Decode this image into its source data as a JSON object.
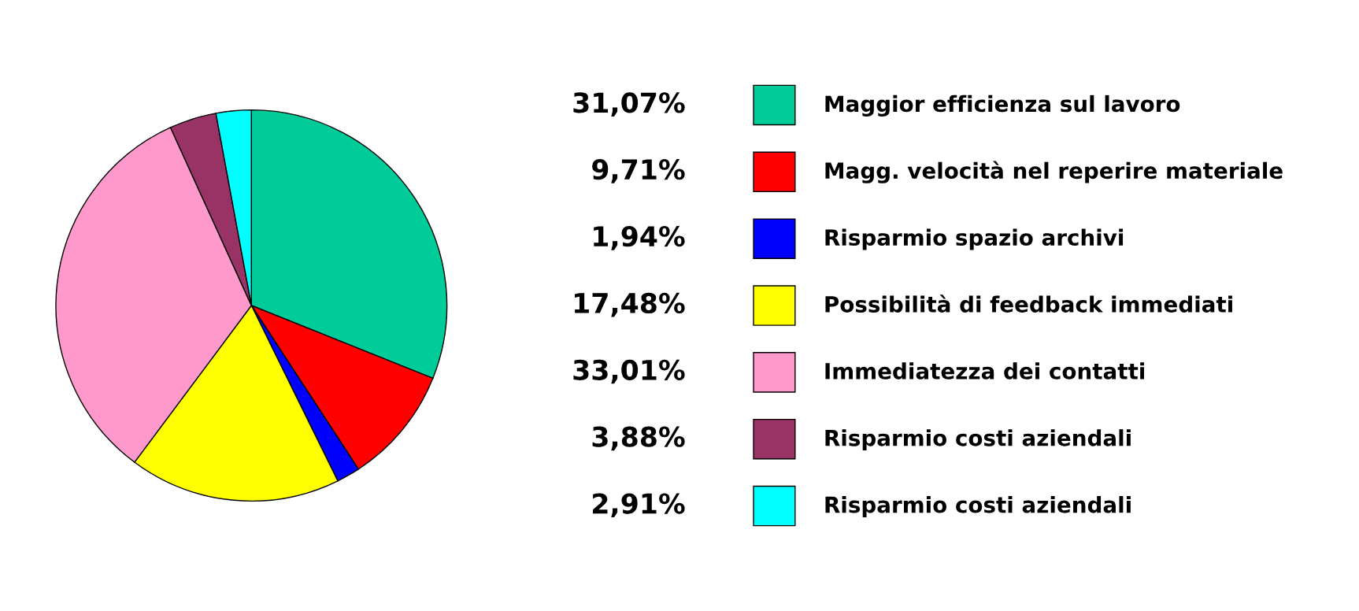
{
  "chart_data": {
    "type": "pie",
    "categories": [
      "Maggior efficienza sul lavoro",
      "Magg. velocità nel reperire materiale",
      "Risparmio spazio archivi",
      "Possibilità di feedback immediati",
      "Immediatezza dei contatti",
      "Risparmio costi aziendali",
      "Risparmio costi aziendali"
    ],
    "values": [
      31.07,
      9.71,
      1.94,
      17.48,
      33.01,
      3.88,
      2.91
    ],
    "value_labels": [
      "31,07%",
      "9,71%",
      "1,94%",
      "17,48%",
      "33,01%",
      "3,88%",
      "2,91%"
    ],
    "colors": [
      "#00cc99",
      "#ff0000",
      "#0000ff",
      "#ffff00",
      "#ff99cc",
      "#993366",
      "#00ffff"
    ],
    "legend": "right"
  }
}
